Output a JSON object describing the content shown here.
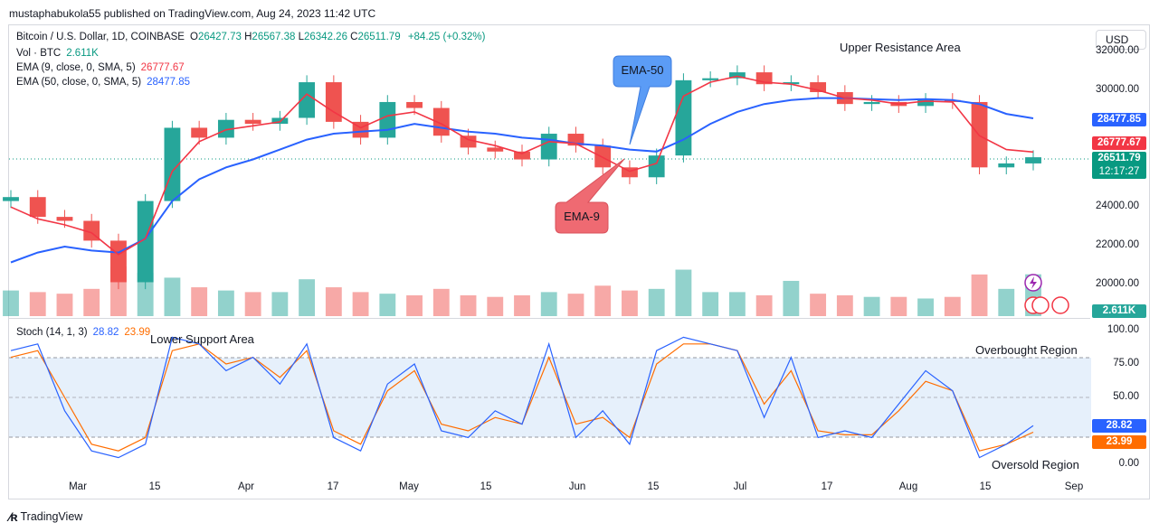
{
  "publisher_line": "mustaphabukola55 published on TradingView.com, Aug 24, 2023 11:42 UTC",
  "currency_button": "USD",
  "legend": {
    "symbol": "Bitcoin / U.S. Dollar, 1D, COINBASE",
    "o_label": "O",
    "o_value": "26427.73",
    "h_label": "H",
    "h_value": "26567.38",
    "l_label": "L",
    "l_value": "26342.26",
    "c_label": "C",
    "c_value": "26511.79",
    "change": "+84.25 (+0.32%)",
    "volume_label": "Vol · BTC",
    "volume_value": "2.611K",
    "ema9_label": "EMA (9, close, 0, SMA, 5)",
    "ema9_value": "26777.67",
    "ema50_label": "EMA (50, close, 0, SMA, 5)",
    "ema50_value": "28477.85",
    "stoch_label": "Stoch (14, 1, 3)",
    "stoch_k": "28.82",
    "stoch_d": "23.99"
  },
  "price_axis": [
    "32000.00",
    "30000.00",
    "28000.00",
    "26000.00",
    "24000.00",
    "22000.00",
    "20000.00"
  ],
  "stoch_axis": [
    "100.00",
    "75.00",
    "50.00",
    "25.00",
    "0.00"
  ],
  "x_ticks": [
    "Mar",
    "15",
    "Apr",
    "17",
    "May",
    "15",
    "Jun",
    "15",
    "Jul",
    "17",
    "Aug",
    "15",
    "Sep"
  ],
  "badges": {
    "ema50": "28477.85",
    "ema9": "26777.67",
    "last_price": "26511.79",
    "countdown": "12:17:27",
    "volume": "2.611K",
    "stoch_k": "28.82",
    "stoch_d": "23.99"
  },
  "annotations": {
    "upper_resistance": "Upper Resistance Area",
    "lower_support": "Lower Support Area",
    "overbought": "Overbought Region",
    "oversold": "Oversold Region",
    "ema50_callout": "EMA-50",
    "ema9_callout": "EMA-9"
  },
  "footer_brand": "TradingView",
  "colors": {
    "up": "#26a69a",
    "down": "#ef5350",
    "ema9": "#f23645",
    "ema50": "#2962ff",
    "stoch_k": "#2962ff",
    "stoch_d": "#ff6d00",
    "callout_blue": "#5b9cf6",
    "callout_red": "#ef6a72"
  },
  "chart_data": {
    "type": "candlestick",
    "ylim": [
      19400,
      32400
    ],
    "x": [
      "Feb 18",
      "Feb 23",
      "Feb 28",
      "Mar 5",
      "Mar 10",
      "Mar 15",
      "Mar 20",
      "Mar 25",
      "Mar 30",
      "Apr 4",
      "Apr 9",
      "Apr 14",
      "Apr 19",
      "Apr 24",
      "Apr 29",
      "May 4",
      "May 9",
      "May 14",
      "May 19",
      "May 24",
      "May 29",
      "Jun 3",
      "Jun 8",
      "Jun 13",
      "Jun 18",
      "Jun 23",
      "Jun 28",
      "Jul 3",
      "Jul 8",
      "Jul 13",
      "Jul 18",
      "Jul 23",
      "Jul 28",
      "Aug 2",
      "Aug 7",
      "Aug 12",
      "Aug 17",
      "Aug 22",
      "Aug 24"
    ],
    "close": [
      24500,
      23500,
      23300,
      22300,
      20200,
      24300,
      28000,
      27500,
      28400,
      28200,
      28500,
      30300,
      28300,
      27500,
      29300,
      29000,
      27600,
      27000,
      26800,
      26400,
      27700,
      27100,
      26000,
      25500,
      26600,
      30400,
      30500,
      30800,
      30200,
      30300,
      29800,
      29200,
      29300,
      29100,
      29400,
      29300,
      26000,
      26200,
      26511
    ],
    "ema9": [
      24000,
      23400,
      23100,
      22700,
      21600,
      22400,
      25800,
      27300,
      27900,
      28100,
      28300,
      29700,
      28800,
      28000,
      28600,
      28800,
      28200,
      27400,
      27100,
      26700,
      27300,
      27200,
      26500,
      25800,
      26200,
      29600,
      30300,
      30600,
      30300,
      30200,
      29900,
      29500,
      29400,
      29200,
      29350,
      29300,
      27600,
      26900,
      26777
    ],
    "ema50": [
      21200,
      21700,
      22000,
      21800,
      21700,
      22400,
      24300,
      25400,
      26000,
      26400,
      26900,
      27400,
      27700,
      27800,
      27900,
      28200,
      28000,
      27800,
      27700,
      27500,
      27400,
      27200,
      27100,
      26900,
      26800,
      27400,
      28200,
      28800,
      29200,
      29400,
      29500,
      29500,
      29450,
      29400,
      29450,
      29400,
      29200,
      28700,
      28477
    ],
    "volume": [
      1.6,
      1.5,
      1.4,
      1.7,
      3.1,
      2.7,
      2.4,
      1.8,
      1.6,
      1.5,
      1.5,
      2.3,
      1.8,
      1.5,
      1.4,
      1.3,
      1.7,
      1.3,
      1.2,
      1.3,
      1.5,
      1.4,
      1.9,
      1.6,
      1.7,
      2.9,
      1.5,
      1.5,
      1.3,
      2.2,
      1.4,
      1.3,
      1.2,
      1.2,
      1.1,
      1.2,
      2.6,
      1.7,
      2.611
    ],
    "stoch_k": [
      85,
      90,
      40,
      10,
      5,
      15,
      95,
      90,
      70,
      80,
      60,
      90,
      20,
      10,
      60,
      75,
      25,
      20,
      40,
      30,
      90,
      20,
      40,
      15,
      85,
      95,
      90,
      85,
      35,
      80,
      20,
      25,
      20,
      45,
      70,
      55,
      5,
      15,
      28.82
    ],
    "stoch_d": [
      80,
      85,
      50,
      15,
      10,
      20,
      85,
      90,
      75,
      80,
      65,
      85,
      25,
      15,
      55,
      70,
      30,
      25,
      35,
      30,
      80,
      30,
      35,
      20,
      75,
      90,
      90,
      85,
      45,
      70,
      25,
      22,
      22,
      40,
      62,
      55,
      10,
      15,
      23.99
    ],
    "stoch_ylim": [
      0,
      100
    ],
    "stoch_bands": [
      80,
      50,
      20
    ]
  }
}
